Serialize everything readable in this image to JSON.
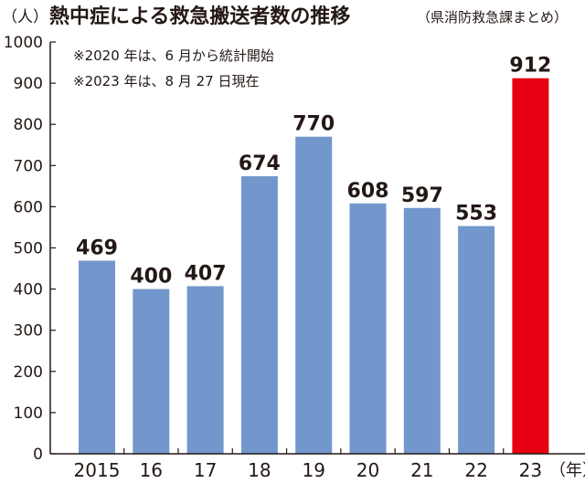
{
  "header": {
    "unit": "（人）",
    "title": "熱中症による救急搬送者数の推移",
    "source": "（県消防救急課まとめ）"
  },
  "notes": [
    "※2020 年は、6 月から統計開始",
    "※2023 年は、8 月 27 日現在"
  ],
  "chart_data": {
    "type": "bar",
    "title": "熱中症による救急搬送者数の推移",
    "ylabel": "（人）",
    "xlabel": "（年）",
    "categories": [
      "2015",
      "16",
      "17",
      "18",
      "19",
      "20",
      "21",
      "22",
      "23"
    ],
    "values": [
      469,
      400,
      407,
      674,
      770,
      608,
      597,
      553,
      912
    ],
    "data_labels": [
      "469",
      "400",
      "407",
      "674",
      "770",
      "608",
      "597",
      "553",
      "912"
    ],
    "ylim": [
      0,
      1000
    ],
    "yticks": [
      "0",
      "100",
      "200",
      "300",
      "400",
      "500",
      "600",
      "700",
      "800",
      "900",
      "1000"
    ],
    "grid": false,
    "colors": {
      "default": "#7297cc",
      "highlight": "#e60012",
      "axis": "#231815"
    },
    "highlight_index": 8
  }
}
